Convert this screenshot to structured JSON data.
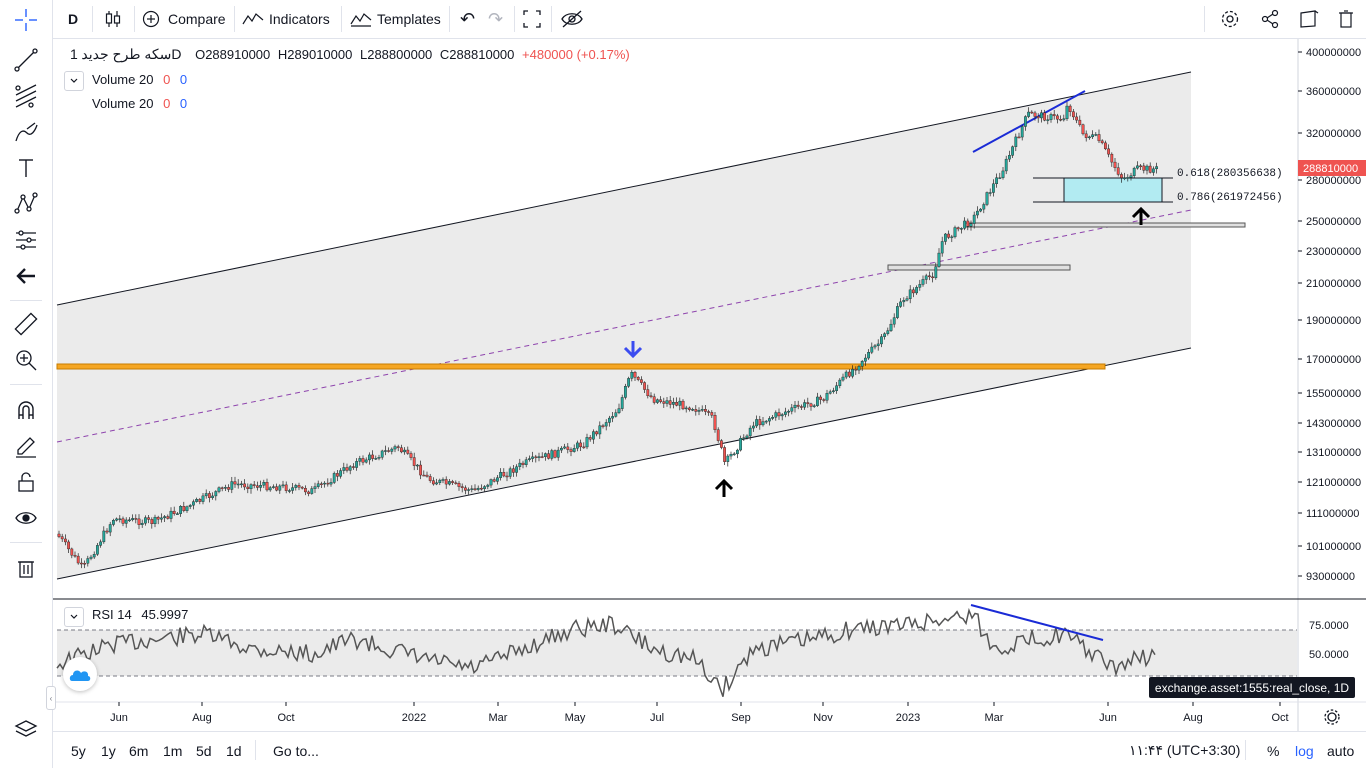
{
  "toolbar": {
    "interval": "D",
    "compare": "Compare",
    "indicators": "Indicators",
    "templates": "Templates"
  },
  "legend": {
    "symbol": "سکه طرح جدید",
    "interval": "1D",
    "open": "O288910000",
    "high": "H289010000",
    "low": "L288800000",
    "close": "C288810000",
    "change": "+480000 (+0.17%)",
    "studies": [
      {
        "name": "Volume 20",
        "v1": "0",
        "v2": "0"
      },
      {
        "name": "Volume 20",
        "v1": "0",
        "v2": "0"
      }
    ]
  },
  "rsi": {
    "name": "RSI 14",
    "value": "45.9997"
  },
  "price_axis": [
    "400000000",
    "360000000",
    "320000000",
    "280000000",
    "250000000",
    "230000000",
    "210000000",
    "190000000",
    "170000000",
    "155000000",
    "143000000",
    "131000000",
    "121000000",
    "111000000",
    "101000000",
    "93000000"
  ],
  "rsi_axis": [
    "75.0000",
    "50.0000"
  ],
  "current_price": "288810000",
  "time_axis": [
    "Jun",
    "Aug",
    "Oct",
    "2022",
    "Mar",
    "May",
    "Jul",
    "Sep",
    "Nov",
    "2023",
    "Mar",
    "Jun",
    "Aug",
    "Oct"
  ],
  "fib": {
    "l618": "0.618(280356638)",
    "l786": "0.786(261972456)"
  },
  "tooltip": "exchange.asset:1555:real_close, 1D",
  "bottom": {
    "ranges": [
      "5y",
      "1y",
      "6m",
      "1m",
      "5d",
      "1d"
    ],
    "goto": "Go to...",
    "clock": "۱۱:۴۴ (UTC+3:30)",
    "percent": "%",
    "log": "log",
    "auto": "auto"
  },
  "colors": {
    "up": "#26a69a",
    "down": "#ef5350",
    "accent": "#2962ff",
    "price_tag": "#ef5350",
    "level": "#f5a623"
  },
  "chart_data": {
    "type": "line",
    "title": "",
    "series": [
      {
        "name": "",
        "x": [
          "2021-05",
          "2021-06",
          "2021-07",
          "2021-08",
          "2021-09",
          "2021-10",
          "2021-11",
          "2021-12",
          "2022-01",
          "2022-02",
          "2022-03",
          "2022-04",
          "2022-05",
          "2022-06",
          "2022-07",
          "2022-08",
          "2022-09",
          "2022-10",
          "2022-11",
          "2022-12",
          "2023-01",
          "2023-02",
          "2023-03",
          "2023-04",
          "2023-05",
          "2023-06",
          "2023-07"
        ],
        "values": [
          95000000,
          105000000,
          110000000,
          118000000,
          122000000,
          118000000,
          120000000,
          127000000,
          130000000,
          122000000,
          120000000,
          126000000,
          140000000,
          160000000,
          150000000,
          145000000,
          135000000,
          150000000,
          160000000,
          190000000,
          225000000,
          250000000,
          300000000,
          320000000,
          330000000,
          290000000,
          288810000
        ]
      }
    ],
    "yscale": "log"
  }
}
